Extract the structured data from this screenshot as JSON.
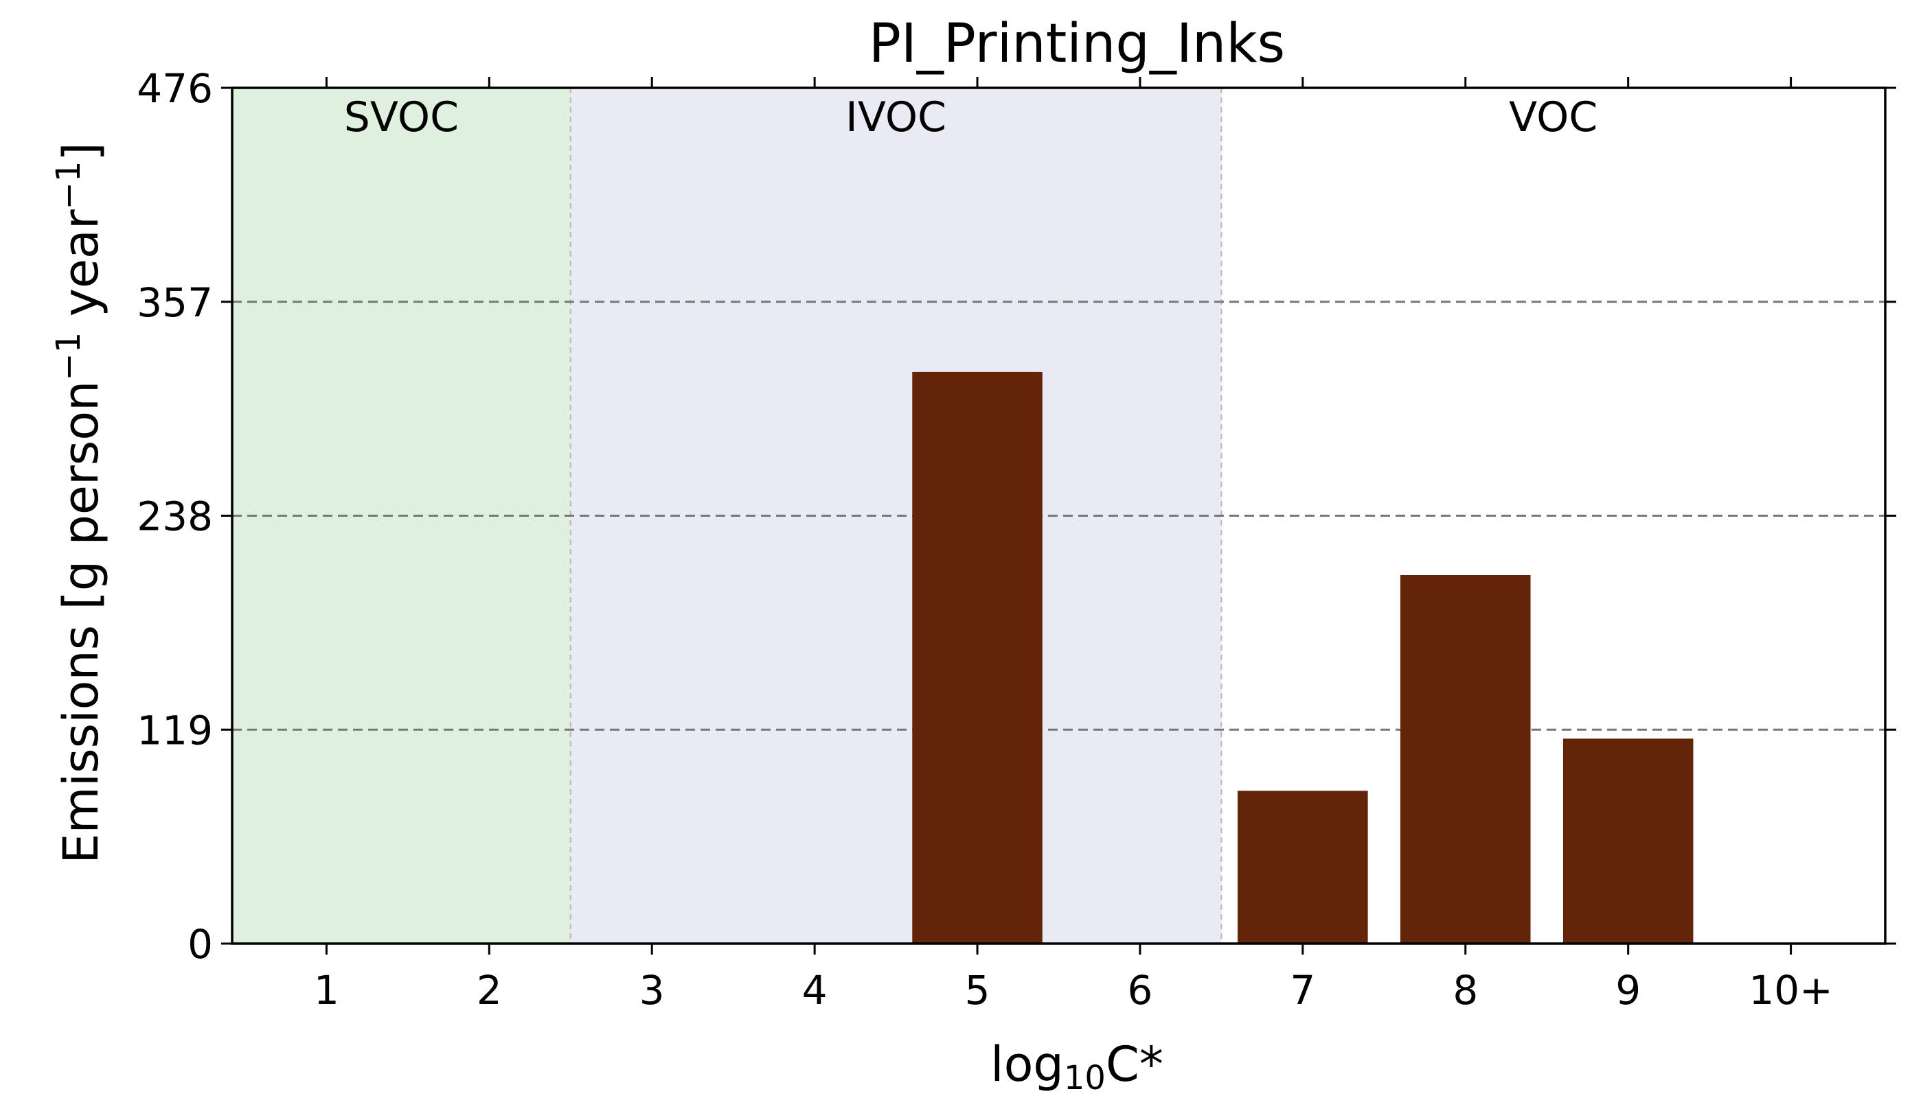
{
  "chart_data": {
    "type": "bar",
    "title": "PI_Printing_Inks",
    "xlabel_main": "log",
    "xlabel_sub": "10",
    "xlabel_tail": "C*",
    "ylabel_main": "Emissions [g person",
    "ylabel_sup1": "−1",
    "ylabel_mid": " year",
    "ylabel_sup2": "−1",
    "ylabel_end": "]",
    "categories": [
      "1",
      "2",
      "3",
      "4",
      "5",
      "6",
      "7",
      "8",
      "9",
      "10+"
    ],
    "values": [
      0,
      0,
      0,
      0,
      318,
      0,
      85,
      205,
      114,
      0
    ],
    "ylim": [
      0,
      476
    ],
    "yticks": [
      0,
      119,
      238,
      357,
      476
    ],
    "ytick_labels": [
      "0",
      "119",
      "238",
      "357",
      "476"
    ],
    "grid": "horizontal dashed",
    "regions": [
      {
        "label": "SVOC",
        "from_index": 0,
        "to_index": 1,
        "color": "#e0f0df"
      },
      {
        "label": "IVOC",
        "from_index": 2,
        "to_index": 5,
        "color": "#eaeaf4"
      },
      {
        "label": "VOC",
        "from_index": 6,
        "to_index": 9,
        "color": "#ffffff"
      }
    ],
    "bar_color": "#642409",
    "grid_color": "#777777"
  }
}
